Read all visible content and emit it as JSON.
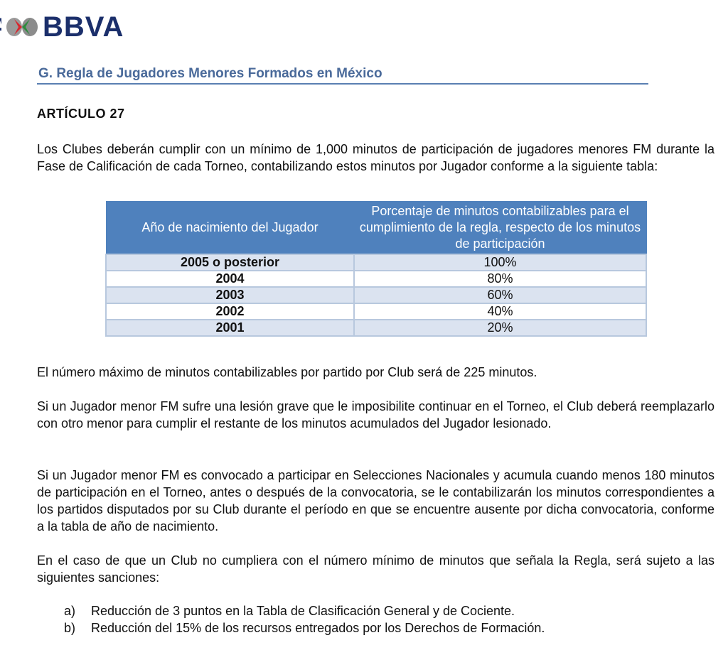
{
  "logo": {
    "partial": "A",
    "brand": "BBVA"
  },
  "section_title": "G. Regla de Jugadores Menores Formados en México",
  "article": "ARTÍCULO  27",
  "intro": "Los Clubes deberán cumplir con un mínimo de 1,000 minutos de participación de jugadores menores FM durante la Fase de Calificación de cada Torneo, contabilizando estos minutos por Jugador conforme a la siguiente tabla:",
  "table": {
    "headers": [
      "Año de nacimiento del Jugador",
      "Porcentaje de minutos contabilizables para el cumplimiento de la regla, respecto de los minutos de participación"
    ],
    "rows": [
      [
        "2005 o posterior",
        "100%"
      ],
      [
        "2004",
        "80%"
      ],
      [
        "2003",
        "60%"
      ],
      [
        "2002",
        "40%"
      ],
      [
        "2001",
        "20%"
      ]
    ]
  },
  "paragraphs": [
    "El número máximo de minutos contabilizables por partido por Club será de 225 minutos.",
    "Si un Jugador menor FM sufre una lesión grave que le imposibilite continuar en el Torneo, el Club deberá reemplazarlo con otro menor para cumplir el restante de los minutos acumulados del Jugador lesionado.",
    "Si un Jugador menor FM es convocado a participar en Selecciones Nacionales y acumula cuando menos 180 minutos de participación en el Torneo, antes o después de la convocatoria, se le contabilizarán los minutos correspondientes a los partidos disputados por su Club durante el período en que se encuentre ausente por dicha convocatoria, conforme a la tabla de año de nacimiento.",
    "En el caso de que un Club no cumpliera con el número mínimo de minutos que señala la Regla, será sujeto a las siguientes sanciones:"
  ],
  "sanctions": [
    {
      "label": "a)",
      "text": "Reducción de 3 puntos en la Tabla de Clasificación General y de Cociente."
    },
    {
      "label": "b)",
      "text": "Reducción del 15% de los recursos entregados por los Derechos de Formación."
    }
  ]
}
